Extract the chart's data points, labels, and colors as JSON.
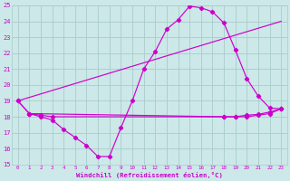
{
  "xlabel": "Windchill (Refroidissement éolien,°C)",
  "bg_color": "#cce8e8",
  "grid_color": "#aacccc",
  "line_color": "#cc00cc",
  "xlim": [
    -0.5,
    23.5
  ],
  "ylim": [
    15,
    25
  ],
  "xticks": [
    0,
    1,
    2,
    3,
    4,
    5,
    6,
    7,
    8,
    9,
    10,
    11,
    12,
    13,
    14,
    15,
    16,
    17,
    18,
    19,
    20,
    21,
    22,
    23
  ],
  "yticks": [
    15,
    16,
    17,
    18,
    19,
    20,
    21,
    22,
    23,
    24,
    25
  ],
  "line1_x": [
    0,
    1,
    2,
    3,
    4,
    5,
    6,
    7,
    8,
    9,
    10,
    11,
    12,
    13,
    14,
    15,
    16,
    17,
    18,
    19,
    20,
    21,
    22,
    23
  ],
  "line1_y": [
    19,
    18.2,
    18.0,
    17.8,
    17.2,
    16.7,
    16.2,
    15.5,
    15.5,
    17.3,
    19.0,
    21.0,
    22.1,
    23.5,
    24.1,
    24.95,
    24.85,
    24.6,
    23.9,
    22.2,
    20.4,
    19.3,
    18.55,
    18.5
  ],
  "line2_x": [
    0,
    1,
    2,
    3,
    18,
    19,
    20,
    21,
    22,
    23
  ],
  "line2_y": [
    19,
    18.2,
    18.1,
    18.0,
    18.0,
    18.0,
    18.1,
    18.15,
    18.3,
    18.5
  ],
  "line3_x": [
    0,
    23
  ],
  "line3_y": [
    19,
    24.0
  ],
  "line4_x": [
    1,
    18,
    19,
    20,
    21,
    22,
    23
  ],
  "line4_y": [
    18.2,
    18.0,
    18.0,
    18.0,
    18.1,
    18.2,
    18.5
  ]
}
